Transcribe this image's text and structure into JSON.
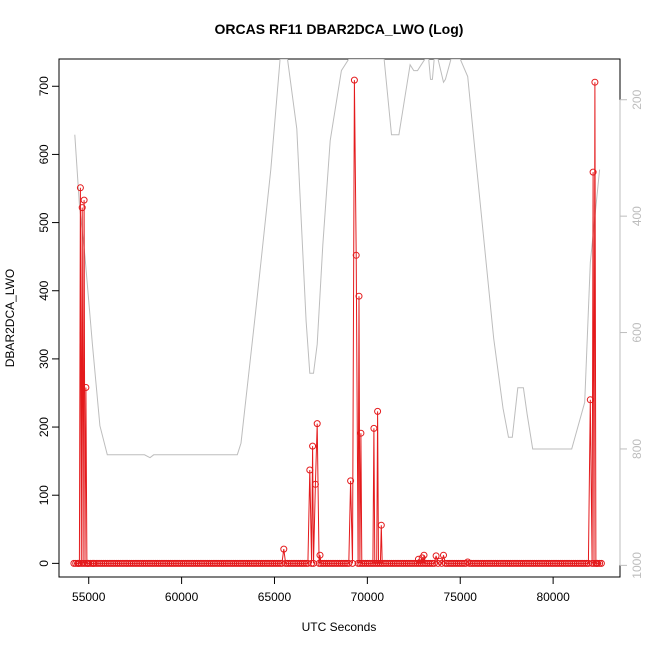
{
  "chart_data": {
    "type": "line",
    "title": "ORCAS RF11 DBAR2DCA_LWO (Log)",
    "xlabel": "UTC Seconds",
    "ylabel": "DBAR2DCA_LWO",
    "xlim": [
      53400,
      83600
    ],
    "ylim": [
      -20,
      740
    ],
    "x_ticks": [
      55000,
      60000,
      65000,
      70000,
      75000,
      80000
    ],
    "x_tick_labels": [
      "55000",
      "60000",
      "65000",
      "70000",
      "75000",
      "80000"
    ],
    "y_ticks": [
      0,
      100,
      200,
      300,
      400,
      500,
      600,
      700
    ],
    "y_tick_labels": [
      "0",
      "100",
      "200",
      "300",
      "400",
      "500",
      "600",
      "700"
    ],
    "right_axis": {
      "ticks": [
        200,
        400,
        600,
        800,
        1000
      ],
      "tick_labels": [
        "200",
        "400",
        "600",
        "800",
        "1000"
      ],
      "lim": [
        1020,
        130
      ],
      "color": "#bdbdbd"
    },
    "grid": false,
    "series": [
      {
        "color": "#e41a1c",
        "marker": "open-circle",
        "x": [
          54300,
          54450,
          54550,
          54650,
          54750,
          54850,
          54950,
          55100,
          55250,
          55400,
          65500,
          66900,
          67050,
          67200,
          67300,
          67450,
          69100,
          69300,
          69400,
          69550,
          69650,
          70350,
          70550,
          70750,
          72750,
          72950,
          73050,
          73700,
          73900,
          74100,
          75400,
          82000,
          82150,
          82250,
          82350
        ],
        "y": [
          0,
          0,
          551,
          522,
          533,
          258,
          0,
          0,
          0,
          0,
          21,
          137,
          172,
          116,
          205,
          12,
          121,
          709,
          452,
          392,
          191,
          198,
          223,
          56,
          6,
          8,
          12,
          11,
          3,
          12,
          2,
          240,
          574,
          706,
          0
        ],
        "baseline_x": [
          54200,
          82600
        ],
        "baseline_step": 100
      },
      {
        "color": "#bdbdbd",
        "marker": "none",
        "axis": "right",
        "x": [
          54250,
          54500,
          54800,
          55200,
          55600,
          56000,
          57000,
          58000,
          58300,
          58500,
          59000,
          60000,
          61000,
          62000,
          63000,
          63200,
          64000,
          64800,
          65300,
          65700,
          66200,
          66700,
          66900,
          67100,
          67300,
          67600,
          68000,
          68600,
          69000,
          69300,
          69700,
          70100,
          70600,
          70900,
          71300,
          71500,
          71700,
          72000,
          72300,
          72500,
          72700,
          72900,
          73100,
          73300,
          73400,
          73500,
          73600,
          73800,
          74100,
          74200,
          74500,
          74700,
          75000,
          75400,
          75800,
          76300,
          76800,
          77300,
          77600,
          77800,
          78100,
          78400,
          78600,
          78900,
          79200,
          80000,
          81000,
          81700,
          82000,
          82500
        ],
        "y": [
          260,
          380,
          470,
          620,
          760,
          810,
          810,
          810,
          815,
          810,
          810,
          810,
          810,
          810,
          810,
          790,
          560,
          320,
          130,
          130,
          250,
          580,
          670,
          670,
          620,
          450,
          270,
          150,
          130,
          130,
          130,
          130,
          130,
          130,
          260,
          260,
          260,
          200,
          140,
          150,
          150,
          140,
          130,
          130,
          165,
          165,
          130,
          130,
          170,
          165,
          130,
          130,
          130,
          160,
          290,
          450,
          610,
          730,
          780,
          780,
          695,
          695,
          740,
          800,
          800,
          800,
          800,
          720,
          480,
          320
        ]
      }
    ]
  }
}
